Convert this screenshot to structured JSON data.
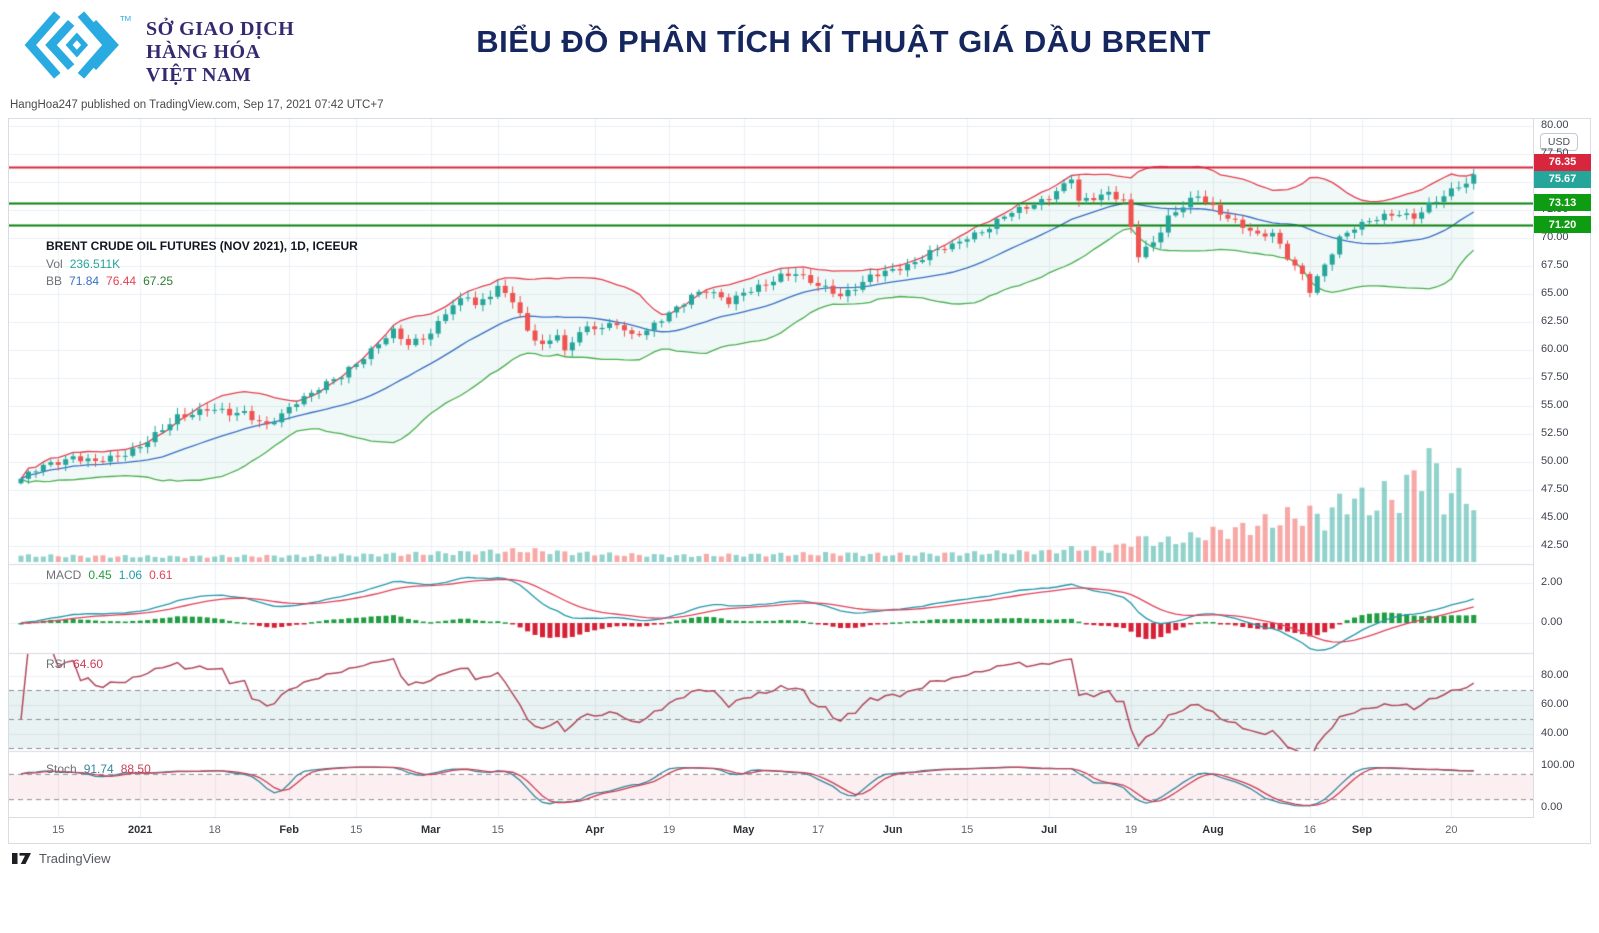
{
  "header": {
    "logo_lines": [
      "SỞ GIAO DỊCH",
      "HÀNG HÓA",
      "VIỆT NAM"
    ],
    "logo_tm": "TM",
    "title": "BIỂU ĐỒ PHÂN TÍCH KĨ THUẬT GIÁ DẦU BRENT"
  },
  "attribution": "HangHoa247 published on TradingView.com, Sep 17, 2021 07:42 UTC+7",
  "footer": {
    "brand": "TradingView"
  },
  "chart": {
    "symbol_line": "BRENT CRUDE OIL FUTURES (NOV 2021), 1D, ICEEUR",
    "legend": {
      "vol_label": "Vol",
      "vol_value": "236.511K",
      "bb_label": "BB",
      "bb_values": [
        "71.84",
        "76.44",
        "67.25"
      ]
    },
    "panels": {
      "macd": {
        "label": "MACD",
        "values": [
          "0.45",
          "1.06",
          "0.61"
        ]
      },
      "rsi": {
        "label": "RSI",
        "value": "64.60"
      },
      "stoch": {
        "label": "Stoch",
        "values": [
          "91.74",
          "88.50"
        ]
      }
    },
    "axis": {
      "currency": "USD",
      "price_ticks": [
        80.0,
        77.5,
        75.0,
        72.5,
        70.0,
        67.5,
        65.0,
        62.5,
        60.0,
        57.5,
        55.0,
        52.5,
        50.0,
        47.5,
        45.0,
        42.5
      ],
      "macd_ticks": [
        2.0,
        0.0
      ],
      "rsi_ticks": [
        80.0,
        60.0,
        40.0
      ],
      "stoch_ticks": [
        100.0,
        0.0
      ],
      "tags": [
        {
          "text": "76.35",
          "value": 76.35,
          "bg": "#d7263d"
        },
        {
          "text": "75.67",
          "value": 75.67,
          "bg": "#26a69a"
        },
        {
          "text": "73.13",
          "value": 73.13,
          "bg": "#0e9c12"
        },
        {
          "text": "71.20",
          "value": 71.2,
          "bg": "#0e9c12"
        }
      ]
    }
  },
  "colors": {
    "up": "#26a69a",
    "down": "#ef5350",
    "vol_up": "rgba(38,166,154,0.5)",
    "vol_down": "rgba(239,83,80,0.5)",
    "bb_upper": "#e54152",
    "bb_basis": "#3a6fc4",
    "bb_lower": "#4caf50",
    "bb_fill": "rgba(38,166,154,0.07)",
    "level_red": "#d7263d",
    "level_green": "#0b800e",
    "macd_line": "#2699ad",
    "macd_signal": "#e0455e",
    "hist_pos": "#1f9d40",
    "hist_neg": "#d62036",
    "rsi_line": "#b04a5e",
    "rsi_fill": "rgba(71,148,145,0.12)",
    "stoch_k": "#38879c",
    "stoch_d": "#c94057",
    "stoch_fill": "rgba(226,74,101,0.09)",
    "grid": "#eef0f4",
    "dash": "#8b8f99",
    "separator": "#d9dce3",
    "accent_title": "#16265e",
    "logo_cyan": "#29abe2"
  },
  "chart_data": {
    "type": "candlestick",
    "title": "BRENT CRUDE OIL FUTURES (NOV 2021), 1D, ICEEUR",
    "ylabel": "USD",
    "price_ylim": [
      42.5,
      80.0
    ],
    "n_days": 196,
    "last_price": 75.67,
    "volume_last": "236.511K",
    "levels": [
      {
        "value": 76.35,
        "color": "#d7263d"
      },
      {
        "value": 73.13,
        "color": "#0b800e"
      },
      {
        "value": 71.2,
        "color": "#0b800e"
      }
    ],
    "x_labels": [
      {
        "t": "15",
        "d": 5,
        "m": 0
      },
      {
        "t": "2021",
        "d": 16,
        "m": 1
      },
      {
        "t": "18",
        "d": 26,
        "m": 0
      },
      {
        "t": "Feb",
        "d": 36,
        "m": 1
      },
      {
        "t": "15",
        "d": 45,
        "m": 0
      },
      {
        "t": "Mar",
        "d": 55,
        "m": 1
      },
      {
        "t": "15",
        "d": 64,
        "m": 0
      },
      {
        "t": "Apr",
        "d": 77,
        "m": 1
      },
      {
        "t": "19",
        "d": 87,
        "m": 0
      },
      {
        "t": "May",
        "d": 97,
        "m": 1
      },
      {
        "t": "17",
        "d": 107,
        "m": 0
      },
      {
        "t": "Jun",
        "d": 117,
        "m": 1
      },
      {
        "t": "15",
        "d": 127,
        "m": 0
      },
      {
        "t": "Jul",
        "d": 138,
        "m": 1
      },
      {
        "t": "19",
        "d": 149,
        "m": 0
      },
      {
        "t": "Aug",
        "d": 160,
        "m": 1
      },
      {
        "t": "16",
        "d": 173,
        "m": 0
      },
      {
        "t": "Sep",
        "d": 180,
        "m": 1
      },
      {
        "t": "20",
        "d": 192,
        "m": 0
      }
    ],
    "close_anchors": [
      [
        0,
        48.5
      ],
      [
        3,
        49.6
      ],
      [
        7,
        50.5
      ],
      [
        10,
        49.9
      ],
      [
        13,
        50.6
      ],
      [
        16,
        51.4
      ],
      [
        19,
        52.8
      ],
      [
        21,
        54.1
      ],
      [
        25,
        54.7
      ],
      [
        28,
        54.3
      ],
      [
        30,
        54.5
      ],
      [
        33,
        53.2
      ],
      [
        35,
        54.1
      ],
      [
        37,
        55.4
      ],
      [
        40,
        56.7
      ],
      [
        43,
        57.6
      ],
      [
        45,
        58.8
      ],
      [
        48,
        60.7
      ],
      [
        50,
        61.6
      ],
      [
        52,
        60.4
      ],
      [
        55,
        61.6
      ],
      [
        57,
        63.4
      ],
      [
        60,
        64.8
      ],
      [
        61,
        63.9
      ],
      [
        64,
        65.7
      ],
      [
        66,
        64.4
      ],
      [
        68,
        61.6
      ],
      [
        70,
        60.4
      ],
      [
        72,
        61.6
      ],
      [
        73,
        59.8
      ],
      [
        75,
        61.6
      ],
      [
        78,
        62.1
      ],
      [
        80,
        62.5
      ],
      [
        82,
        61.2
      ],
      [
        84,
        61.6
      ],
      [
        87,
        63.4
      ],
      [
        90,
        64.8
      ],
      [
        92,
        65.2
      ],
      [
        95,
        64.4
      ],
      [
        97,
        65.2
      ],
      [
        100,
        65.7
      ],
      [
        102,
        66.6
      ],
      [
        104,
        67.0
      ],
      [
        107,
        65.7
      ],
      [
        110,
        64.8
      ],
      [
        112,
        65.7
      ],
      [
        114,
        66.6
      ],
      [
        117,
        67.0
      ],
      [
        120,
        67.9
      ],
      [
        122,
        68.8
      ],
      [
        125,
        69.2
      ],
      [
        127,
        70.1
      ],
      [
        130,
        71.0
      ],
      [
        132,
        71.9
      ],
      [
        135,
        72.8
      ],
      [
        138,
        73.7
      ],
      [
        140,
        74.6
      ],
      [
        141,
        75.3
      ],
      [
        142,
        73.2
      ],
      [
        144,
        73.7
      ],
      [
        146,
        74.1
      ],
      [
        148,
        73.2
      ],
      [
        150,
        68.4
      ],
      [
        152,
        69.7
      ],
      [
        154,
        71.9
      ],
      [
        156,
        72.8
      ],
      [
        158,
        73.7
      ],
      [
        160,
        72.8
      ],
      [
        162,
        71.9
      ],
      [
        164,
        71.0
      ],
      [
        166,
        70.1
      ],
      [
        168,
        70.5
      ],
      [
        170,
        68.4
      ],
      [
        172,
        66.6
      ],
      [
        173,
        65.2
      ],
      [
        175,
        67.5
      ],
      [
        177,
        70.1
      ],
      [
        179,
        71.0
      ],
      [
        181,
        71.4
      ],
      [
        183,
        71.9
      ],
      [
        185,
        72.3
      ],
      [
        187,
        71.9
      ],
      [
        189,
        72.8
      ],
      [
        191,
        73.7
      ],
      [
        193,
        74.8
      ],
      [
        194,
        74.9
      ],
      [
        195,
        75.67
      ]
    ],
    "vol_anchors": [
      [
        0,
        0.06
      ],
      [
        20,
        0.05
      ],
      [
        40,
        0.06
      ],
      [
        55,
        0.08
      ],
      [
        68,
        0.11
      ],
      [
        73,
        0.09
      ],
      [
        80,
        0.07
      ],
      [
        90,
        0.06
      ],
      [
        100,
        0.07
      ],
      [
        110,
        0.08
      ],
      [
        117,
        0.07
      ],
      [
        125,
        0.08
      ],
      [
        132,
        0.09
      ],
      [
        138,
        0.1
      ],
      [
        142,
        0.13
      ],
      [
        146,
        0.11
      ],
      [
        150,
        0.22
      ],
      [
        153,
        0.19
      ],
      [
        156,
        0.21
      ],
      [
        160,
        0.28
      ],
      [
        163,
        0.3
      ],
      [
        166,
        0.35
      ],
      [
        170,
        0.42
      ],
      [
        173,
        0.45
      ],
      [
        175,
        0.4
      ],
      [
        177,
        0.55
      ],
      [
        179,
        0.62
      ],
      [
        181,
        0.52
      ],
      [
        183,
        0.62
      ],
      [
        185,
        0.6
      ],
      [
        187,
        0.8
      ],
      [
        189,
        1.0
      ],
      [
        191,
        0.58
      ],
      [
        192,
        0.68
      ],
      [
        193,
        0.72
      ],
      [
        194,
        0.64
      ],
      [
        195,
        0.58
      ]
    ],
    "indicators": {
      "bollinger": {
        "period": 20,
        "stddev": 2,
        "shown": {
          "basis": 71.84,
          "upper": 76.44,
          "lower": 67.25
        }
      },
      "macd": {
        "fast": 12,
        "slow": 26,
        "signal": 9,
        "shown": [
          0.45,
          1.06,
          0.61
        ],
        "axis_range_shown": [
          0.0,
          2.0
        ]
      },
      "rsi": {
        "period": 14,
        "shown": 64.6,
        "dashed_bands": [
          70,
          50,
          30
        ]
      },
      "stoch": {
        "k": 14,
        "d": 3,
        "smooth": 3,
        "shown": [
          91.74,
          88.5
        ],
        "dashed_bands": [
          80,
          20
        ]
      }
    }
  }
}
